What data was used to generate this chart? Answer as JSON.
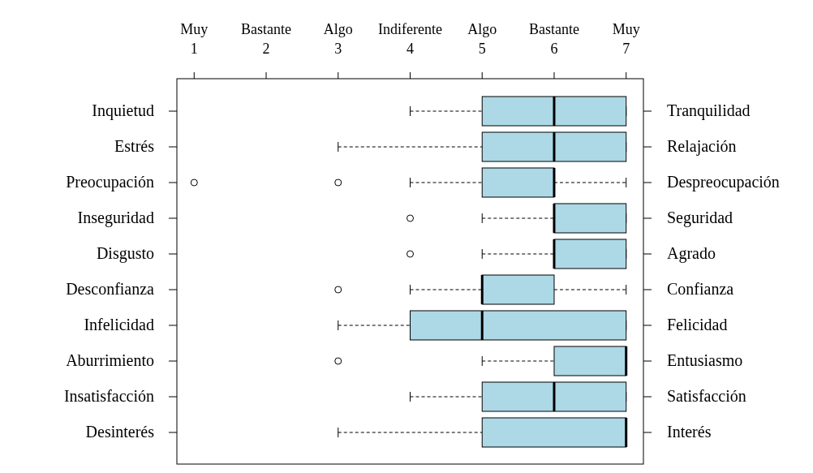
{
  "chart_data": {
    "type": "box",
    "orientation": "horizontal",
    "categories": [
      "Inquietud",
      "Estrés",
      "Preocupación",
      "Inseguridad",
      "Disgusto",
      "Desconfianza",
      "Infelicidad",
      "Aburrimiento",
      "Insatisfacción",
      "Desinterés"
    ],
    "y2_categories": [
      "Tranquilidad",
      "Relajación",
      "Despreocupación",
      "Seguridad",
      "Agrado",
      "Confianza",
      "Felicidad",
      "Entusiasmo",
      "Satisfacción",
      "Interés"
    ],
    "xlim": [
      0.76,
      7.24
    ],
    "xticks": [
      1,
      2,
      3,
      4,
      5,
      6,
      7
    ],
    "annotations": [
      "Muy",
      "Bastante",
      "Algo",
      "Indiferente",
      "Algo",
      "Bastante",
      "Muy"
    ],
    "series": [
      {
        "color": "#add8e6",
        "boxes": [
          {
            "low": 4,
            "q1": 5,
            "median": 6,
            "q3": 7,
            "high": 7
          },
          {
            "low": 3,
            "q1": 5,
            "median": 6,
            "q3": 7,
            "high": 7
          },
          {
            "low": 4,
            "q1": 5,
            "median": 6,
            "q3": 6,
            "high": 7,
            "outliers": [
              1,
              3
            ]
          },
          {
            "low": 5,
            "q1": 6,
            "median": 6,
            "q3": 7,
            "high": 7,
            "outliers": [
              4
            ]
          },
          {
            "low": 5,
            "q1": 6,
            "median": 6,
            "q3": 7,
            "high": 7,
            "outliers": [
              4
            ]
          },
          {
            "low": 4,
            "q1": 5,
            "median": 5,
            "q3": 6,
            "high": 7,
            "outliers": [
              3
            ]
          },
          {
            "low": 3,
            "q1": 4,
            "median": 5,
            "q3": 7,
            "high": 7
          },
          {
            "low": 5,
            "q1": 6,
            "median": 7,
            "q3": 7,
            "high": 7,
            "outliers": [
              3
            ]
          },
          {
            "low": 4,
            "q1": 5,
            "median": 6,
            "q3": 7,
            "high": 7
          },
          {
            "low": 3,
            "q1": 5,
            "median": 7,
            "q3": 7,
            "high": 7
          }
        ]
      }
    ]
  }
}
